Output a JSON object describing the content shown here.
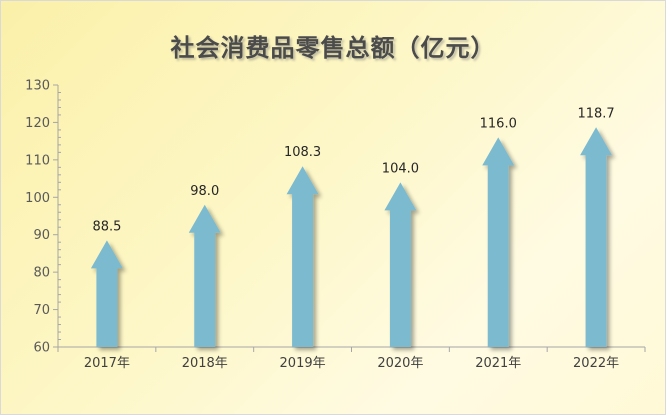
{
  "chart_data": {
    "type": "bar",
    "title": "社会消费品零售总额（亿元）",
    "categories": [
      "2017年",
      "2018年",
      "2019年",
      "2020年",
      "2021年",
      "2022年"
    ],
    "values": [
      88.5,
      98.0,
      108.3,
      104.0,
      116.0,
      118.7
    ],
    "value_labels": [
      "88.5",
      "98.0",
      "108.3",
      "104.0",
      "116.0",
      "118.7"
    ],
    "ylim": [
      60,
      130
    ],
    "yticks": [
      60,
      70,
      80,
      90,
      100,
      110,
      120,
      130
    ],
    "xlabel": "",
    "ylabel": "",
    "grid": false,
    "bar_shape": "arrow",
    "colors": {
      "bar": "#7bbad0",
      "axis": "#a6a6a6",
      "background": "#fdf3b8"
    }
  }
}
